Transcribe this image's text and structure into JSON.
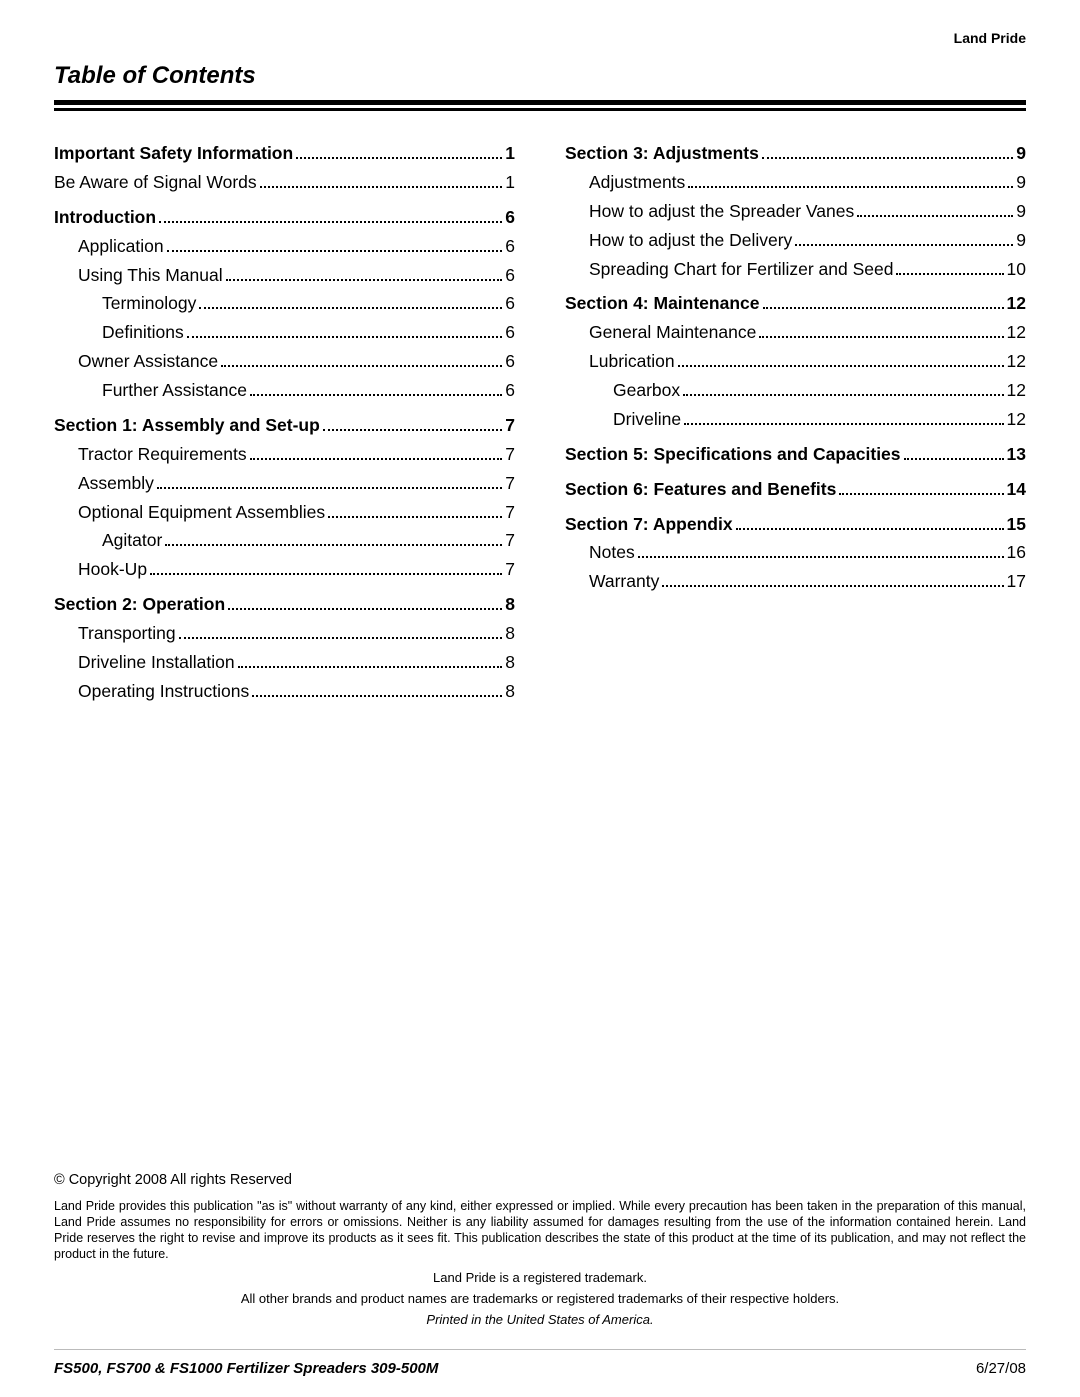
{
  "brand": "Land Pride",
  "title": "Table of Contents",
  "columns": {
    "left": [
      {
        "label": "Important Safety Information",
        "page": "1",
        "level": 0
      },
      {
        "label": "Be Aware of Signal Words",
        "page": "1",
        "level": 0,
        "plain": true
      },
      {
        "label": "Introduction",
        "page": "6",
        "level": 0,
        "gap": true
      },
      {
        "label": "Application",
        "page": "6",
        "level": 1
      },
      {
        "label": "Using This Manual",
        "page": "6",
        "level": 1
      },
      {
        "label": "Terminology",
        "page": "6",
        "level": 2
      },
      {
        "label": "Definitions",
        "page": "6",
        "level": 2
      },
      {
        "label": "Owner Assistance",
        "page": "6",
        "level": 1
      },
      {
        "label": "Further Assistance",
        "page": "6",
        "level": 2
      },
      {
        "label": "Section 1: Assembly and Set-up",
        "page": "7",
        "level": 0,
        "gap": true
      },
      {
        "label": "Tractor Requirements",
        "page": "7",
        "level": 1
      },
      {
        "label": "Assembly",
        "page": "7",
        "level": 1
      },
      {
        "label": "Optional Equipment Assemblies",
        "page": "7",
        "level": 1
      },
      {
        "label": "Agitator",
        "page": "7",
        "level": 2
      },
      {
        "label": "Hook-Up",
        "page": "7",
        "level": 1
      },
      {
        "label": "Section 2: Operation",
        "page": "8",
        "level": 0,
        "gap": true
      },
      {
        "label": "Transporting",
        "page": "8",
        "level": 1
      },
      {
        "label": "Driveline Installation",
        "page": "8",
        "level": 1
      },
      {
        "label": "Operating Instructions",
        "page": "8",
        "level": 1
      }
    ],
    "right": [
      {
        "label": "Section 3: Adjustments",
        "page": "9",
        "level": 0
      },
      {
        "label": "Adjustments",
        "page": "9",
        "level": 1
      },
      {
        "label": "How to adjust the Spreader Vanes",
        "page": "9",
        "level": 1
      },
      {
        "label": "How to adjust the Delivery",
        "page": "9",
        "level": 1
      },
      {
        "label": "Spreading Chart for Fertilizer and Seed",
        "page": "10",
        "level": 1
      },
      {
        "label": "Section 4: Maintenance",
        "page": "12",
        "level": 0,
        "gap": true
      },
      {
        "label": "General Maintenance",
        "page": "12",
        "level": 1
      },
      {
        "label": "Lubrication",
        "page": "12",
        "level": 1
      },
      {
        "label": "Gearbox",
        "page": "12",
        "level": 2
      },
      {
        "label": "Driveline",
        "page": "12",
        "level": 2
      },
      {
        "label": "Section 5: Specifications and Capacities",
        "page": "13",
        "level": 0,
        "gap": true
      },
      {
        "label": "Section 6: Features and Benefits",
        "page": "14",
        "level": 0,
        "gap": true
      },
      {
        "label": "Section 7: Appendix",
        "page": "15",
        "level": 0,
        "gap": true
      },
      {
        "label": "Notes",
        "page": "16",
        "level": 1
      },
      {
        "label": "Warranty",
        "page": "17",
        "level": 1
      }
    ]
  },
  "legal": {
    "copyright": "© Copyright 2008 All rights Reserved",
    "paragraph": "Land Pride provides this publication \"as is\" without warranty of any kind, either expressed or implied. While every precaution has been taken in the preparation of this manual, Land Pride assumes no responsibility for errors or omissions. Neither is any liability assumed for damages resulting from the use of the information contained herein. Land Pride reserves the right to revise and improve its products as it sees fit. This publication describes the state of this product at the time of its publication, and may not reflect the product in the future.",
    "trademark": "Land Pride is a registered trademark.",
    "other_brands": "All other brands and product names are trademarks or registered trademarks of their respective holders.",
    "printed": "Printed in the United States of America."
  },
  "footer": {
    "doc_id": "FS500, FS700 & FS1000 Fertilizer Spreaders   309-500M",
    "date": "6/27/08"
  }
}
